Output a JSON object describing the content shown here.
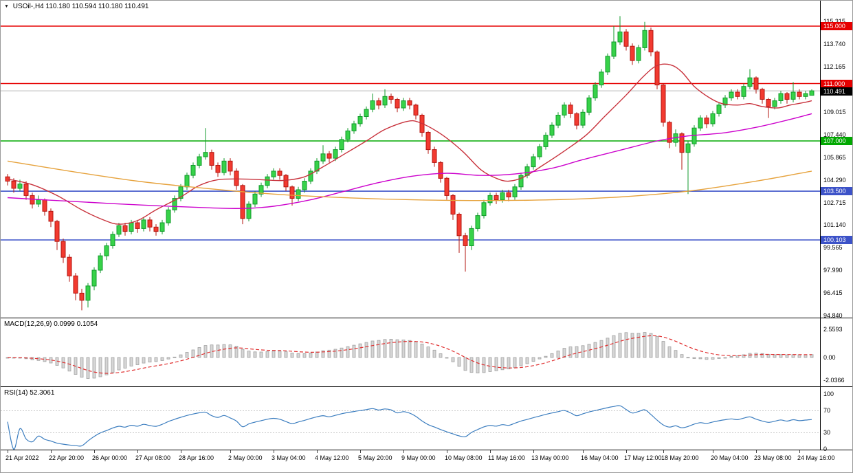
{
  "header": {
    "symbol_timeframe": "USOil-,H4",
    "open": "110.180",
    "high": "110.594",
    "low": "110.180",
    "close": "110.491"
  },
  "colors": {
    "up_fill": "#37d249",
    "up_stroke": "#119a2b",
    "down_fill": "#f23a30",
    "down_stroke": "#b3150f",
    "level_red": "#e60000",
    "level_green": "#00a800",
    "level_blue": "#3c52c8",
    "current_badge": "#000000",
    "bid_line": "#b8b8b8",
    "ma_fast": "#c8323c",
    "ma_mid": "#cc00cc",
    "ma_slow": "#e6a23c",
    "macd_bar_fill": "#d6d6d6",
    "macd_bar_stroke": "#a0a0a0",
    "macd_signal": "#e03030",
    "rsi_line": "#3b7dbf",
    "rsi_level": "#c8c8c8"
  },
  "chart_data": {
    "type": "candlestick",
    "symbol": "USOil-",
    "timeframe": "H4",
    "title": "USOil-,H4 110.180 110.594 110.180 110.491",
    "ylim": [
      94.693,
      116.772
    ],
    "current_price": 110.491,
    "price_axis_ticks": [
      "115.315",
      "113.740",
      "112.165",
      "110.590",
      "109.015",
      "107.440",
      "105.865",
      "104.290",
      "102.715",
      "101.140",
      "99.565",
      "97.990",
      "96.415",
      "94.840"
    ],
    "levels": [
      {
        "price": 115.0,
        "label": "115.000",
        "color_key": "level_red"
      },
      {
        "price": 111.0,
        "label": "111.000",
        "color_key": "level_red"
      },
      {
        "price": 107.0,
        "label": "107.000",
        "color_key": "level_green"
      },
      {
        "price": 103.5,
        "label": "103.500",
        "color_key": "level_blue"
      },
      {
        "price": 100.103,
        "label": "100.103",
        "color_key": "level_blue"
      }
    ],
    "current_price_label": "110.491",
    "candles": [
      [
        104.5,
        104.7,
        103.9,
        104.2
      ],
      [
        104.2,
        104.4,
        103.4,
        103.7
      ],
      [
        103.7,
        104.3,
        103.5,
        104.0
      ],
      [
        104.0,
        104.2,
        102.9,
        103.2
      ],
      [
        103.2,
        103.4,
        102.3,
        102.6
      ],
      [
        102.6,
        103.2,
        102.4,
        102.9
      ],
      [
        102.9,
        103.0,
        101.8,
        102.1
      ],
      [
        102.1,
        102.3,
        101.0,
        101.4
      ],
      [
        101.4,
        101.5,
        99.4,
        100.0
      ],
      [
        100.0,
        100.2,
        98.5,
        98.9
      ],
      [
        98.9,
        99.1,
        97.2,
        97.6
      ],
      [
        97.6,
        97.8,
        95.9,
        96.4
      ],
      [
        96.4,
        96.7,
        95.2,
        95.9
      ],
      [
        95.9,
        97.1,
        95.4,
        96.9
      ],
      [
        96.9,
        98.2,
        96.6,
        98.0
      ],
      [
        98.0,
        99.2,
        97.8,
        99.0
      ],
      [
        99.0,
        99.9,
        98.7,
        99.7
      ],
      [
        99.7,
        100.7,
        99.5,
        100.5
      ],
      [
        100.5,
        101.3,
        100.3,
        101.1
      ],
      [
        101.1,
        101.3,
        100.4,
        100.7
      ],
      [
        100.7,
        101.5,
        100.5,
        101.3
      ],
      [
        101.3,
        101.5,
        100.6,
        100.9
      ],
      [
        100.9,
        101.7,
        100.7,
        101.5
      ],
      [
        101.5,
        101.7,
        100.7,
        101.0
      ],
      [
        101.0,
        101.2,
        100.4,
        100.7
      ],
      [
        100.7,
        101.5,
        100.5,
        101.3
      ],
      [
        101.3,
        102.4,
        101.1,
        102.2
      ],
      [
        102.2,
        103.2,
        102.0,
        103.0
      ],
      [
        103.0,
        104.0,
        102.8,
        103.8
      ],
      [
        103.8,
        104.8,
        103.6,
        104.6
      ],
      [
        104.6,
        105.5,
        104.4,
        105.3
      ],
      [
        105.3,
        106.1,
        105.1,
        105.9
      ],
      [
        105.9,
        107.9,
        105.7,
        106.2
      ],
      [
        106.2,
        106.4,
        105.0,
        105.3
      ],
      [
        105.3,
        105.5,
        104.5,
        104.8
      ],
      [
        104.8,
        105.8,
        104.6,
        105.6
      ],
      [
        105.6,
        105.8,
        104.6,
        104.9
      ],
      [
        104.9,
        105.1,
        103.6,
        103.9
      ],
      [
        103.9,
        104.0,
        101.2,
        101.6
      ],
      [
        101.6,
        102.8,
        101.4,
        102.6
      ],
      [
        102.6,
        103.5,
        102.4,
        103.3
      ],
      [
        103.3,
        104.1,
        103.1,
        103.9
      ],
      [
        103.9,
        104.7,
        103.7,
        104.5
      ],
      [
        104.5,
        105.1,
        104.3,
        104.9
      ],
      [
        104.9,
        105.1,
        104.3,
        104.6
      ],
      [
        104.6,
        104.7,
        103.5,
        103.8
      ],
      [
        103.8,
        103.9,
        102.5,
        103.0
      ],
      [
        103.0,
        103.8,
        102.8,
        103.6
      ],
      [
        103.6,
        104.4,
        103.4,
        104.2
      ],
      [
        104.2,
        105.1,
        104.0,
        104.9
      ],
      [
        104.9,
        105.8,
        104.7,
        105.6
      ],
      [
        105.6,
        106.7,
        105.4,
        106.1
      ],
      [
        106.1,
        106.3,
        105.5,
        105.8
      ],
      [
        105.8,
        106.6,
        105.6,
        106.4
      ],
      [
        106.4,
        107.3,
        106.2,
        107.1
      ],
      [
        107.1,
        107.9,
        106.9,
        107.7
      ],
      [
        107.7,
        108.4,
        107.5,
        108.2
      ],
      [
        108.2,
        108.9,
        108.0,
        108.7
      ],
      [
        108.7,
        109.4,
        108.5,
        109.2
      ],
      [
        109.2,
        110.3,
        109.0,
        109.8
      ],
      [
        109.8,
        110.0,
        109.2,
        109.5
      ],
      [
        109.5,
        110.6,
        109.3,
        110.1
      ],
      [
        110.1,
        110.3,
        109.6,
        109.9
      ],
      [
        109.9,
        110.0,
        109.0,
        109.3
      ],
      [
        109.3,
        110.0,
        109.1,
        109.8
      ],
      [
        109.8,
        110.0,
        109.2,
        109.5
      ],
      [
        109.5,
        109.6,
        108.5,
        108.8
      ],
      [
        108.8,
        108.9,
        107.3,
        107.6
      ],
      [
        107.6,
        107.7,
        106.1,
        106.4
      ],
      [
        106.4,
        106.6,
        105.2,
        105.5
      ],
      [
        105.5,
        105.6,
        104.1,
        104.4
      ],
      [
        104.4,
        104.5,
        102.9,
        103.2
      ],
      [
        103.2,
        103.3,
        101.5,
        101.9
      ],
      [
        101.9,
        102.0,
        99.2,
        100.4
      ],
      [
        100.4,
        100.6,
        97.9,
        99.7
      ],
      [
        99.7,
        101.1,
        99.4,
        100.9
      ],
      [
        100.9,
        102.0,
        100.7,
        101.8
      ],
      [
        101.8,
        102.9,
        101.6,
        102.7
      ],
      [
        102.7,
        103.4,
        102.5,
        103.2
      ],
      [
        103.2,
        103.4,
        102.6,
        102.9
      ],
      [
        102.9,
        103.6,
        102.7,
        103.4
      ],
      [
        103.4,
        103.6,
        102.8,
        103.1
      ],
      [
        103.1,
        104.0,
        102.9,
        103.8
      ],
      [
        103.8,
        104.8,
        103.6,
        104.6
      ],
      [
        104.6,
        105.4,
        104.4,
        105.2
      ],
      [
        105.2,
        106.1,
        105.0,
        105.9
      ],
      [
        105.9,
        106.8,
        105.7,
        106.6
      ],
      [
        106.6,
        107.6,
        106.4,
        107.4
      ],
      [
        107.4,
        108.3,
        107.2,
        108.1
      ],
      [
        108.1,
        109.0,
        107.9,
        108.8
      ],
      [
        108.8,
        109.7,
        108.6,
        109.5
      ],
      [
        109.5,
        109.7,
        108.6,
        108.9
      ],
      [
        108.9,
        109.0,
        107.8,
        108.1
      ],
      [
        108.1,
        109.2,
        107.9,
        109.0
      ],
      [
        109.0,
        110.2,
        108.8,
        110.0
      ],
      [
        110.0,
        111.1,
        109.8,
        110.9
      ],
      [
        110.9,
        112.0,
        110.7,
        111.8
      ],
      [
        111.8,
        113.1,
        111.6,
        112.9
      ],
      [
        112.9,
        115.0,
        112.7,
        113.9
      ],
      [
        113.9,
        115.7,
        113.7,
        114.6
      ],
      [
        114.6,
        114.8,
        113.3,
        113.6
      ],
      [
        113.6,
        113.8,
        112.3,
        112.6
      ],
      [
        112.6,
        113.7,
        112.4,
        113.5
      ],
      [
        113.5,
        115.3,
        113.3,
        114.7
      ],
      [
        114.7,
        114.9,
        112.9,
        113.2
      ],
      [
        113.2,
        113.3,
        110.6,
        110.9
      ],
      [
        110.9,
        111.0,
        108.0,
        108.3
      ],
      [
        108.3,
        108.4,
        106.5,
        106.9
      ],
      [
        106.9,
        107.8,
        106.6,
        107.5
      ],
      [
        107.5,
        107.6,
        105.0,
        106.2
      ],
      [
        106.2,
        107.0,
        103.3,
        106.8
      ],
      [
        106.8,
        108.1,
        106.6,
        107.9
      ],
      [
        107.9,
        108.8,
        107.7,
        108.6
      ],
      [
        108.6,
        108.8,
        107.9,
        108.2
      ],
      [
        108.2,
        109.1,
        108.0,
        108.9
      ],
      [
        108.9,
        109.7,
        108.7,
        109.5
      ],
      [
        109.5,
        110.2,
        109.3,
        110.0
      ],
      [
        110.0,
        110.6,
        109.8,
        110.4
      ],
      [
        110.4,
        110.6,
        109.9,
        110.1
      ],
      [
        110.1,
        111.0,
        109.9,
        110.8
      ],
      [
        110.8,
        112.0,
        110.6,
        111.4
      ],
      [
        111.4,
        111.5,
        110.3,
        110.6
      ],
      [
        110.6,
        110.7,
        109.6,
        109.9
      ],
      [
        109.9,
        110.0,
        108.6,
        109.4
      ],
      [
        109.4,
        110.0,
        109.2,
        109.8
      ],
      [
        109.8,
        110.5,
        109.6,
        110.3
      ],
      [
        110.3,
        110.4,
        109.6,
        109.9
      ],
      [
        109.9,
        111.1,
        109.7,
        110.4
      ],
      [
        110.4,
        110.6,
        109.9,
        110.1
      ],
      [
        110.1,
        110.5,
        109.9,
        110.3
      ],
      [
        110.18,
        110.594,
        110.18,
        110.491
      ]
    ],
    "moving_averages": [
      {
        "name": "ma-fast",
        "color_key": "ma_fast",
        "points": [
          [
            0,
            104.35
          ],
          [
            4,
            103.95
          ],
          [
            8,
            103.2
          ],
          [
            12,
            102.2
          ],
          [
            15.5,
            101.5
          ],
          [
            18,
            101.2
          ],
          [
            21,
            101.45
          ],
          [
            24,
            102.2
          ],
          [
            28,
            103.1
          ],
          [
            31,
            103.9
          ],
          [
            34,
            104.3
          ],
          [
            38,
            104.35
          ],
          [
            41,
            104.3
          ],
          [
            44.5,
            104.25
          ],
          [
            48,
            104.5
          ],
          [
            51,
            105.2
          ],
          [
            54.5,
            106.1
          ],
          [
            58,
            107.0
          ],
          [
            61,
            107.8
          ],
          [
            64.5,
            108.35
          ],
          [
            66.5,
            108.3
          ],
          [
            70,
            107.5
          ],
          [
            73.5,
            106.3
          ],
          [
            76.5,
            105.0
          ],
          [
            79,
            104.4
          ],
          [
            81,
            104.2
          ],
          [
            83.5,
            104.5
          ],
          [
            86.5,
            105.3
          ],
          [
            90,
            106.3
          ],
          [
            93.5,
            107.4
          ],
          [
            96.5,
            108.7
          ],
          [
            100,
            110.2
          ],
          [
            102.8,
            111.5
          ],
          [
            105,
            112.25
          ],
          [
            107.2,
            112.3
          ],
          [
            109,
            111.8
          ],
          [
            111,
            110.8
          ],
          [
            113.5,
            110.0
          ],
          [
            115.5,
            109.6
          ],
          [
            118,
            109.5
          ],
          [
            120,
            109.6
          ],
          [
            122,
            109.4
          ],
          [
            124.5,
            109.3
          ],
          [
            126.5,
            109.5
          ],
          [
            129,
            109.7
          ],
          [
            130,
            109.8
          ]
        ]
      },
      {
        "name": "ma-mid",
        "color_key": "ma_mid",
        "points": [
          [
            0,
            103.05
          ],
          [
            10,
            102.8
          ],
          [
            21,
            102.55
          ],
          [
            32,
            102.35
          ],
          [
            38,
            102.3
          ],
          [
            43,
            102.45
          ],
          [
            49,
            102.9
          ],
          [
            54.5,
            103.5
          ],
          [
            60,
            104.1
          ],
          [
            65.5,
            104.55
          ],
          [
            71,
            104.75
          ],
          [
            76.5,
            104.6
          ],
          [
            82,
            104.7
          ],
          [
            88,
            105.1
          ],
          [
            93,
            105.7
          ],
          [
            99,
            106.35
          ],
          [
            105,
            107.0
          ],
          [
            110,
            107.35
          ],
          [
            115.5,
            107.55
          ],
          [
            121,
            107.95
          ],
          [
            126.5,
            108.5
          ],
          [
            130,
            108.9
          ]
        ]
      },
      {
        "name": "ma-slow",
        "color_key": "ma_slow",
        "points": [
          [
            0,
            105.6
          ],
          [
            10,
            104.9
          ],
          [
            21,
            104.2
          ],
          [
            32,
            103.7
          ],
          [
            43,
            103.3
          ],
          [
            54.5,
            103.05
          ],
          [
            65.5,
            102.9
          ],
          [
            76.5,
            102.85
          ],
          [
            88,
            102.9
          ],
          [
            99,
            103.1
          ],
          [
            110,
            103.5
          ],
          [
            121,
            104.2
          ],
          [
            130,
            104.9
          ]
        ]
      }
    ],
    "time_labels": [
      {
        "i": 0,
        "t": "21 Apr 2022"
      },
      {
        "i": 7,
        "t": "22 Apr 20:00"
      },
      {
        "i": 14,
        "t": "26 Apr 00:00"
      },
      {
        "i": 21,
        "t": "27 Apr 08:00"
      },
      {
        "i": 28,
        "t": "28 Apr 16:00"
      },
      {
        "i": 36,
        "t": "2 May 00:00"
      },
      {
        "i": 43,
        "t": "3 May 04:00"
      },
      {
        "i": 50,
        "t": "4 May 12:00"
      },
      {
        "i": 57,
        "t": "5 May 20:00"
      },
      {
        "i": 64,
        "t": "9 May 00:00"
      },
      {
        "i": 71,
        "t": "10 May 08:00"
      },
      {
        "i": 78,
        "t": "11 May 16:00"
      },
      {
        "i": 85,
        "t": "13 May 00:00"
      },
      {
        "i": 93,
        "t": "16 May 04:00"
      },
      {
        "i": 100,
        "t": "17 May 12:00"
      },
      {
        "i": 106,
        "t": "18 May 20:00"
      },
      {
        "i": 114,
        "t": "20 May 04:00"
      },
      {
        "i": 121,
        "t": "23 May 08:00"
      },
      {
        "i": 128,
        "t": "24 May 16:00"
      }
    ],
    "indicators": {
      "macd": {
        "label": "MACD(12,26,9)",
        "value_main": "0.0999",
        "value_signal": "0.1054",
        "params": {
          "fast": 12,
          "slow": 26,
          "signal": 9
        },
        "axis_ticks": [
          "2.5593",
          "0.00",
          "-2.0366"
        ],
        "ylim": [
          -2.625,
          3.5625
        ]
      },
      "rsi": {
        "label": "RSI(14)",
        "value": "52.3061",
        "period": 14,
        "axis_ticks": [
          "100",
          "70",
          "30",
          "0"
        ],
        "levels": [
          70,
          30
        ],
        "ylim": [
          -0.625,
          113.1
        ]
      }
    }
  }
}
